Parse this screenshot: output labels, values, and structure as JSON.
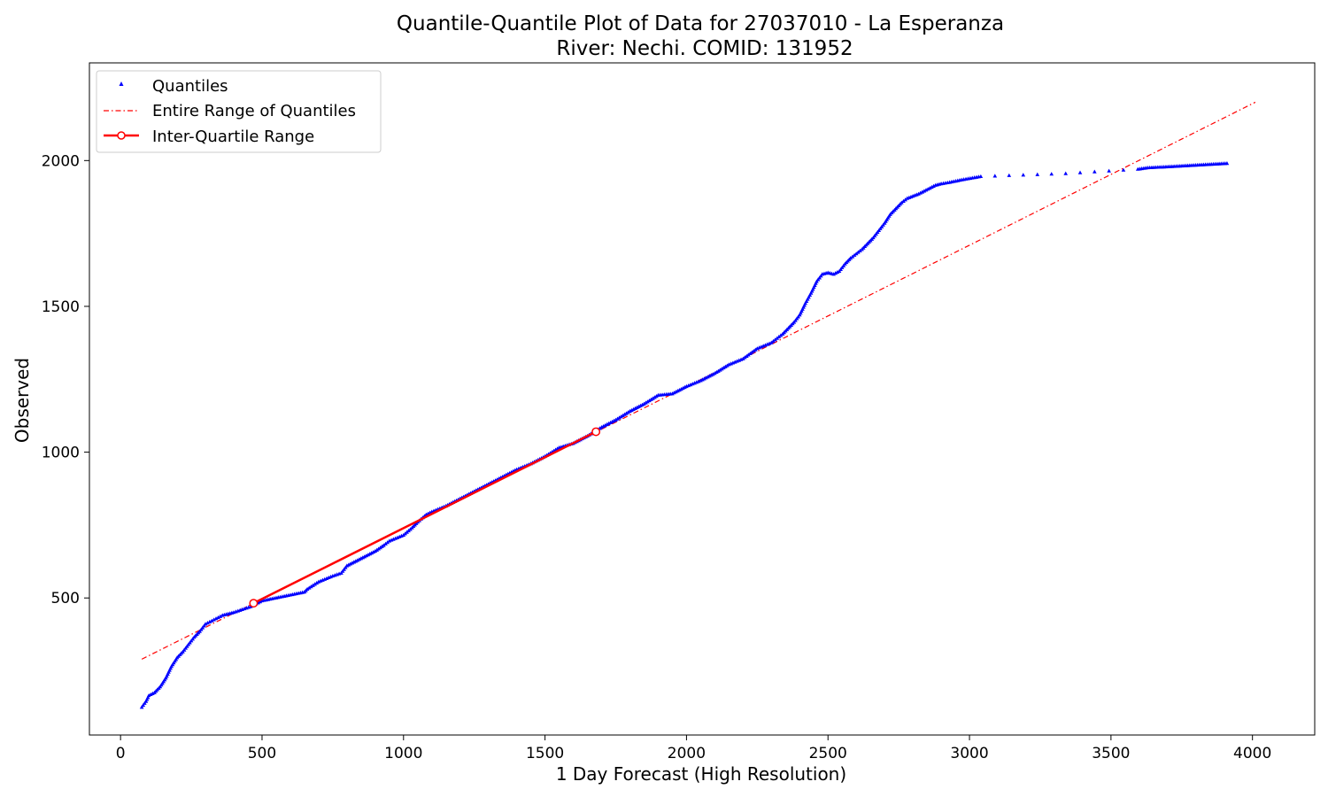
{
  "chart_data": {
    "type": "scatter",
    "title": "Quantile-Quantile Plot of Data for 27037010 - La Esperanza",
    "subtitle": "River: Nechi. COMID: 131952",
    "xlabel": "1 Day Forecast (High Resolution)",
    "ylabel": "Observed",
    "xlim": [
      -110,
      4220
    ],
    "ylim": [
      30,
      2335
    ],
    "xticks": [
      0,
      500,
      1000,
      1500,
      2000,
      2500,
      3000,
      3500,
      4000
    ],
    "yticks": [
      500,
      1000,
      1500,
      2000
    ],
    "grid": false,
    "legend_position": "upper-left",
    "series": [
      {
        "name": "Quantiles",
        "kind": "markers",
        "marker": "triangle",
        "color": "#0000ff",
        "x": [
          75,
          90,
          100,
          120,
          140,
          160,
          180,
          200,
          220,
          240,
          260,
          280,
          300,
          330,
          360,
          400,
          430,
          460,
          480,
          500,
          550,
          600,
          650,
          660,
          700,
          750,
          780,
          800,
          850,
          900,
          930,
          950,
          1000,
          1030,
          1050,
          1080,
          1100,
          1150,
          1200,
          1250,
          1300,
          1350,
          1400,
          1450,
          1500,
          1550,
          1600,
          1650,
          1700,
          1750,
          1800,
          1850,
          1900,
          1950,
          2000,
          2050,
          2100,
          2150,
          2200,
          2250,
          2300,
          2320,
          2340,
          2360,
          2380,
          2400,
          2420,
          2440,
          2460,
          2480,
          2500,
          2520,
          2540,
          2560,
          2580,
          2600,
          2620,
          2640,
          2660,
          2680,
          2700,
          2720,
          2740,
          2760,
          2780,
          2820,
          2840,
          2860,
          2880,
          2900,
          2930,
          2980,
          3040,
          3340,
          3595,
          3630,
          3730,
          3910
        ],
        "y": [
          125,
          145,
          165,
          175,
          195,
          225,
          265,
          295,
          315,
          340,
          365,
          385,
          410,
          425,
          440,
          450,
          460,
          470,
          480,
          490,
          500,
          510,
          520,
          530,
          555,
          575,
          585,
          610,
          635,
          660,
          680,
          695,
          715,
          740,
          760,
          785,
          795,
          815,
          840,
          865,
          890,
          915,
          940,
          960,
          985,
          1015,
          1030,
          1055,
          1085,
          1110,
          1140,
          1165,
          1195,
          1200,
          1225,
          1245,
          1270,
          1300,
          1320,
          1355,
          1375,
          1390,
          1405,
          1425,
          1445,
          1470,
          1510,
          1545,
          1585,
          1610,
          1615,
          1610,
          1620,
          1645,
          1665,
          1680,
          1695,
          1715,
          1735,
          1760,
          1785,
          1815,
          1835,
          1855,
          1870,
          1885,
          1895,
          1905,
          1915,
          1920,
          1925,
          1935,
          1945,
          1955,
          1970,
          1975,
          1980,
          1990
        ]
      },
      {
        "name": "Entire Range of Quantiles",
        "kind": "line",
        "style": "dashdot",
        "color": "#ff0000",
        "x": [
          75,
          4010
        ],
        "y": [
          290,
          2200
        ]
      },
      {
        "name": "Inter-Quartile Range",
        "kind": "line-with-endpoints",
        "color": "#ff0000",
        "x": [
          470,
          1680
        ],
        "y": [
          482,
          1070
        ]
      }
    ]
  }
}
